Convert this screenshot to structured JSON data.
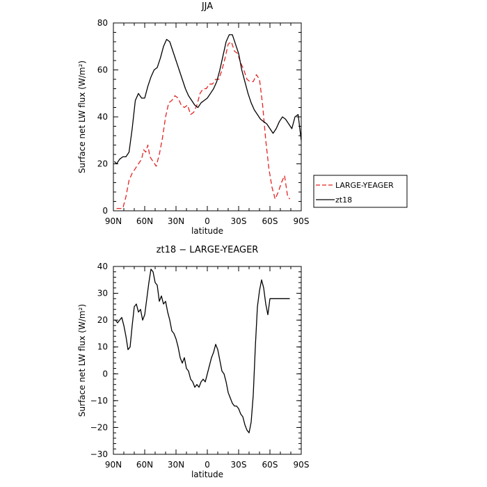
{
  "chart_data": [
    {
      "type": "line",
      "title": "JJA",
      "xlabel": "latitude",
      "ylabel": "Surface net LW flux (W/m²)",
      "xlim": [
        90,
        -90
      ],
      "ylim": [
        0,
        80
      ],
      "x_ticks": [
        90,
        60,
        30,
        0,
        -30,
        -60,
        -90
      ],
      "x_tick_labels": [
        "90N",
        "60N",
        "30N",
        "0",
        "30S",
        "60S",
        "90S"
      ],
      "y_ticks": [
        0,
        20,
        40,
        60,
        80
      ],
      "y_tick_labels": [
        "0",
        "20",
        "40",
        "60",
        "80"
      ],
      "legend": "outside-right",
      "series": [
        {
          "name": "LARGE-YEAGER",
          "color": "#e32222",
          "dash": "dashed",
          "x": [
            87,
            84,
            81,
            78,
            75,
            72,
            69,
            66,
            63,
            61,
            59,
            57,
            55,
            52,
            49,
            46,
            43,
            40,
            37,
            34,
            31,
            28,
            25,
            22,
            19,
            16,
            13,
            10,
            7,
            4,
            1,
            -2,
            -5,
            -8,
            -11,
            -14,
            -17,
            -20,
            -23,
            -26,
            -29,
            -32,
            -35,
            -38,
            -41,
            -44,
            -47,
            -50,
            -53,
            -56,
            -59,
            -62,
            -65,
            -68,
            -71,
            -74,
            -77,
            -79
          ],
          "y": [
            1,
            1,
            1,
            6,
            13,
            16,
            18,
            20,
            22,
            26,
            25,
            28,
            23,
            21,
            19,
            24,
            31,
            40,
            46,
            47,
            49,
            48,
            45,
            44,
            45,
            41,
            42,
            45,
            50,
            52,
            52,
            54,
            54,
            56,
            56,
            60,
            65,
            71,
            72,
            68,
            67,
            63,
            60,
            56,
            55,
            55,
            58,
            56,
            45,
            30,
            18,
            10,
            5,
            8,
            12,
            15,
            6,
            5
          ]
        },
        {
          "name": "zt18",
          "color": "#000000",
          "dash": "solid",
          "x": [
            89,
            87,
            84,
            81,
            78,
            75,
            72,
            69,
            66,
            63,
            60,
            57,
            54,
            51,
            48,
            45,
            42,
            39,
            36,
            33,
            30,
            27,
            24,
            21,
            18,
            15,
            12,
            9,
            6,
            3,
            0,
            -3,
            -6,
            -9,
            -12,
            -15,
            -18,
            -21,
            -24,
            -27,
            -30,
            -33,
            -36,
            -39,
            -42,
            -45,
            -48,
            -51,
            -54,
            -57,
            -60,
            -63,
            -66,
            -69,
            -72,
            -75,
            -78,
            -81,
            -84,
            -87,
            -90
          ],
          "y": [
            21,
            20,
            22,
            23,
            23,
            25,
            35,
            47,
            50,
            48,
            48,
            53,
            57,
            60,
            61,
            65,
            70,
            73,
            72,
            68,
            64,
            60,
            56,
            52,
            49,
            47,
            45,
            44,
            46,
            47,
            48,
            50,
            52,
            55,
            60,
            66,
            72,
            75,
            75,
            71,
            67,
            60,
            55,
            50,
            46,
            43,
            41,
            39,
            38,
            37,
            35,
            33,
            35,
            38,
            40,
            39,
            37,
            35,
            40,
            41,
            30
          ]
        }
      ]
    },
    {
      "type": "line",
      "title": "zt18 − LARGE-YEAGER",
      "xlabel": "latitude",
      "ylabel": "Surface net LW flux (W/m²)",
      "xlim": [
        90,
        -90
      ],
      "ylim": [
        -30,
        40
      ],
      "x_ticks": [
        90,
        60,
        30,
        0,
        -30,
        -60,
        -90
      ],
      "x_tick_labels": [
        "90N",
        "60N",
        "30N",
        "0",
        "30S",
        "60S",
        "90S"
      ],
      "y_ticks": [
        -30,
        -20,
        -10,
        0,
        10,
        20,
        30,
        40
      ],
      "y_tick_labels": [
        "−30",
        "−20",
        "−10",
        "0",
        "10",
        "20",
        "30",
        "40"
      ],
      "series": [
        {
          "name": "",
          "color": "#000000",
          "dash": "solid",
          "x": [
            88,
            86,
            84,
            82,
            80,
            78,
            76,
            74,
            72,
            70,
            68,
            66,
            64,
            62,
            60,
            58,
            56,
            54,
            52,
            50,
            48,
            46,
            44,
            42,
            40,
            38,
            36,
            34,
            32,
            30,
            28,
            26,
            24,
            22,
            20,
            18,
            16,
            14,
            12,
            10,
            8,
            6,
            4,
            2,
            0,
            -2,
            -4,
            -6,
            -8,
            -10,
            -12,
            -14,
            -16,
            -18,
            -20,
            -22,
            -24,
            -26,
            -28,
            -30,
            -32,
            -34,
            -36,
            -38,
            -40,
            -42,
            -44,
            -46,
            -48,
            -50,
            -52,
            -54,
            -56,
            -58,
            -60,
            -62,
            -64,
            -66,
            -68,
            -70,
            -72,
            -74,
            -76,
            -78,
            -79
          ],
          "y": [
            20,
            19,
            20,
            21,
            18,
            14,
            9,
            10,
            18,
            25,
            26,
            23,
            24,
            20,
            22,
            28,
            34,
            39,
            38,
            34,
            33,
            27,
            29,
            26,
            27,
            23,
            20,
            16,
            15,
            13,
            10,
            6,
            4,
            6,
            2,
            1,
            -2,
            -3,
            -5,
            -4,
            -5,
            -3,
            -2,
            -3,
            0,
            3,
            6,
            8,
            11,
            9,
            5,
            1,
            0,
            -3,
            -7,
            -9,
            -11,
            -12,
            -12,
            -13,
            -15,
            -16,
            -19,
            -21,
            -22,
            -18,
            -8,
            10,
            25,
            31,
            35,
            32,
            26,
            22,
            28,
            28,
            28,
            28,
            28,
            28,
            28,
            28,
            28,
            28,
            28
          ]
        }
      ]
    }
  ]
}
